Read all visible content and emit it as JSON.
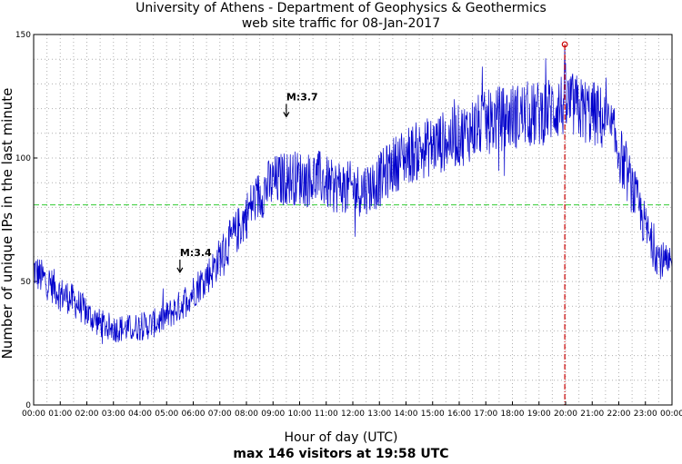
{
  "chart_data": {
    "type": "line",
    "title": "University of Athens - Department of Geophysics & Geothermics",
    "subtitle": "web site traffic for 08-Jan-2017",
    "xlabel": "Hour of day (UTC)",
    "summary": "max 146 visitors at 19:58 UTC",
    "ylabel": "Number of unique IPs in the last minute",
    "xlim": [
      0,
      24
    ],
    "ylim": [
      0,
      150
    ],
    "x_ticks": [
      "00:00",
      "01:00",
      "02:00",
      "03:00",
      "04:00",
      "05:00",
      "06:00",
      "07:00",
      "08:00",
      "09:00",
      "10:00",
      "11:00",
      "12:00",
      "13:00",
      "14:00",
      "15:00",
      "16:00",
      "17:00",
      "18:00",
      "19:00",
      "20:00",
      "21:00",
      "22:00",
      "23:00",
      "00:00"
    ],
    "y_ticks": [
      "0",
      "50",
      "100",
      "150"
    ],
    "grid": true,
    "series": [
      {
        "name": "visitors",
        "color": "#0000cc",
        "x": [
          0,
          0.25,
          0.5,
          0.75,
          1,
          1.25,
          1.5,
          1.75,
          2,
          2.25,
          2.5,
          2.75,
          3,
          3.25,
          3.5,
          3.75,
          4,
          4.25,
          4.5,
          4.75,
          5,
          5.25,
          5.5,
          5.75,
          6,
          6.25,
          6.5,
          6.75,
          7,
          7.25,
          7.5,
          7.75,
          8,
          8.25,
          8.5,
          8.75,
          9,
          9.25,
          9.5,
          9.75,
          10,
          10.25,
          10.5,
          10.75,
          11,
          11.25,
          11.5,
          11.75,
          12,
          12.25,
          12.5,
          12.75,
          13,
          13.25,
          13.5,
          13.75,
          14,
          14.25,
          14.5,
          14.75,
          15,
          15.25,
          15.5,
          15.75,
          16,
          16.25,
          16.5,
          16.75,
          17,
          17.25,
          17.5,
          17.75,
          18,
          18.25,
          18.5,
          18.75,
          19,
          19.25,
          19.5,
          19.75,
          20,
          20.25,
          20.5,
          20.75,
          21,
          21.25,
          21.5,
          21.75,
          22,
          22.25,
          22.5,
          22.75,
          23,
          23.25,
          23.5,
          23.75,
          24
        ],
        "y": [
          55,
          52,
          50,
          48,
          45,
          44,
          42,
          40,
          37,
          35,
          33,
          32,
          31,
          31,
          31,
          31,
          32,
          32,
          33,
          34,
          36,
          38,
          40,
          43,
          46,
          49,
          52,
          55,
          60,
          64,
          68,
          72,
          77,
          82,
          85,
          88,
          90,
          91,
          92,
          92,
          92,
          91,
          92,
          92,
          90,
          88,
          89,
          88,
          88,
          87,
          88,
          89,
          91,
          94,
          97,
          99,
          101,
          102,
          103,
          104,
          105,
          106,
          107,
          108,
          109,
          110,
          112,
          113,
          114,
          115,
          116,
          116,
          117,
          117,
          118,
          117,
          118,
          119,
          120,
          121,
          122,
          121,
          120,
          119,
          118,
          117,
          114,
          110,
          103,
          95,
          88,
          80,
          72,
          65,
          60,
          57,
          55
        ]
      },
      {
        "name": "average",
        "color": "#33cc33",
        "value": 81
      }
    ],
    "max_marker": {
      "x": 19.97,
      "y": 146,
      "color": "#cc0000"
    },
    "annotations": [
      {
        "label": "M:3.4",
        "x": 5.5,
        "y": 53
      },
      {
        "label": "M:3.7",
        "x": 9.5,
        "y": 116
      }
    ]
  }
}
